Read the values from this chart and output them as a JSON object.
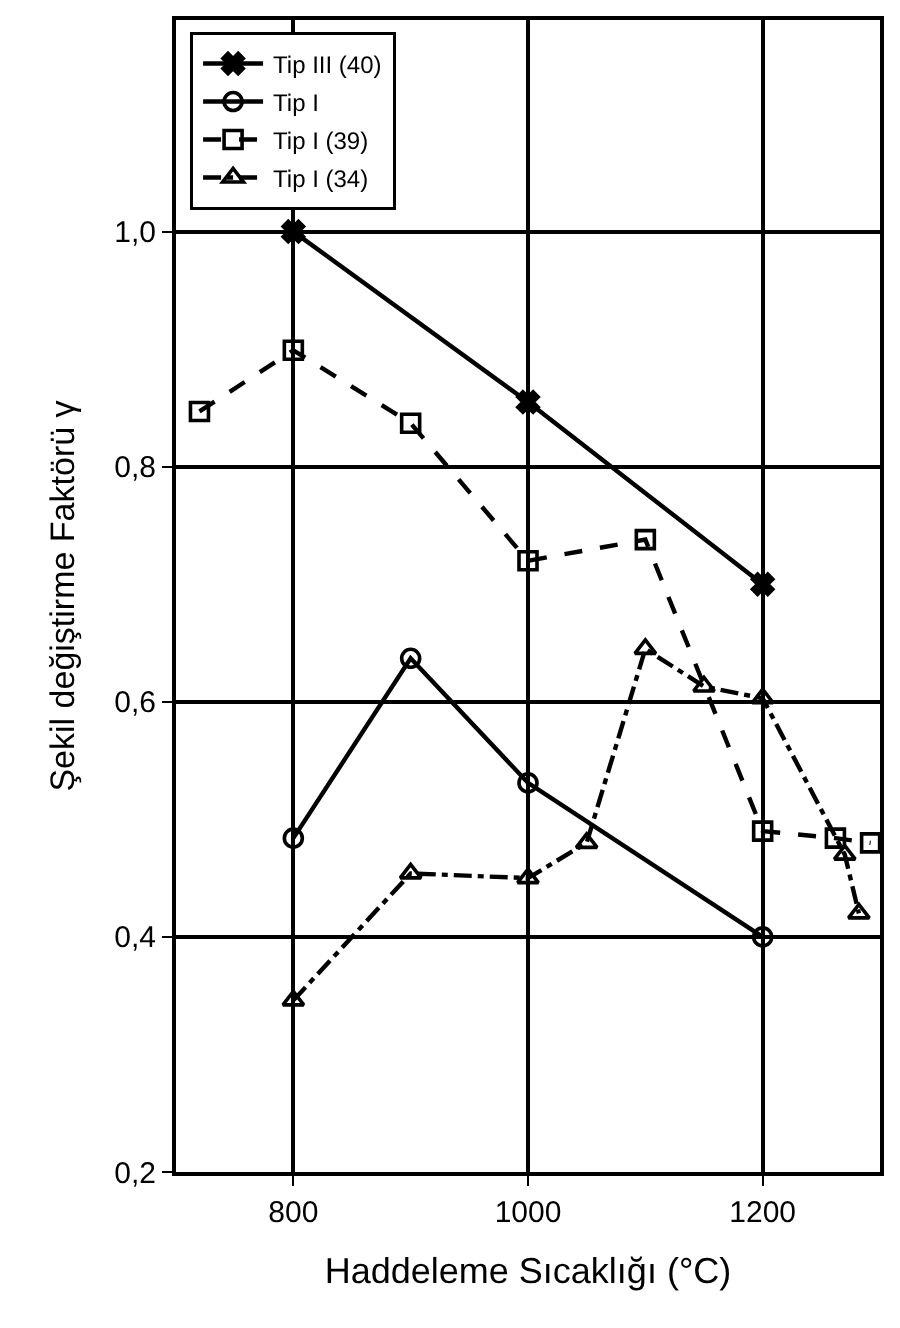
{
  "chart_data": {
    "type": "line",
    "xlabel": "Haddeleme Sıcaklığı (°C)",
    "ylabel": "Şekil değiştirme Faktörü γ",
    "xlim": [
      700,
      1300
    ],
    "xticks": [
      800,
      1000,
      1200
    ],
    "ylim": [
      0.2,
      1.18
    ],
    "yticks": [
      {
        "value": 0.2,
        "label": "0,2"
      },
      {
        "value": 0.4,
        "label": "0,4"
      },
      {
        "value": 0.6,
        "label": "0,6"
      },
      {
        "value": 0.8,
        "label": "0,8"
      },
      {
        "value": 1.0,
        "label": "1,0"
      }
    ],
    "grid": true,
    "legend": "top left",
    "series": [
      {
        "name": "Tip III (40)",
        "color": "#000000",
        "marker": "cross",
        "line_style": "solid",
        "x": [
          800,
          1000,
          1200
        ],
        "values": [
          1.0,
          0.855,
          0.7
        ]
      },
      {
        "name": "Tip I",
        "color": "#000000",
        "marker": "circle",
        "line_style": "solid",
        "x": [
          800,
          900,
          1000,
          1200
        ],
        "values": [
          0.484,
          0.637,
          0.531,
          0.4
        ]
      },
      {
        "name": "Tip I (39)",
        "color": "#000000",
        "marker": "square",
        "line_style": "dashed",
        "x": [
          720,
          800,
          900,
          1000,
          1100,
          1200,
          1262,
          1292
        ],
        "values": [
          0.847,
          0.899,
          0.837,
          0.72,
          0.738,
          0.49,
          0.484,
          0.48
        ]
      },
      {
        "name": "Tip I (34)",
        "color": "#000000",
        "marker": "triangle",
        "line_style": "dashdot",
        "x": [
          800,
          900,
          1000,
          1050,
          1100,
          1150,
          1200,
          1270,
          1282
        ],
        "values": [
          0.346,
          0.454,
          0.45,
          0.48,
          0.645,
          0.613,
          0.603,
          0.47,
          0.42
        ]
      }
    ]
  }
}
